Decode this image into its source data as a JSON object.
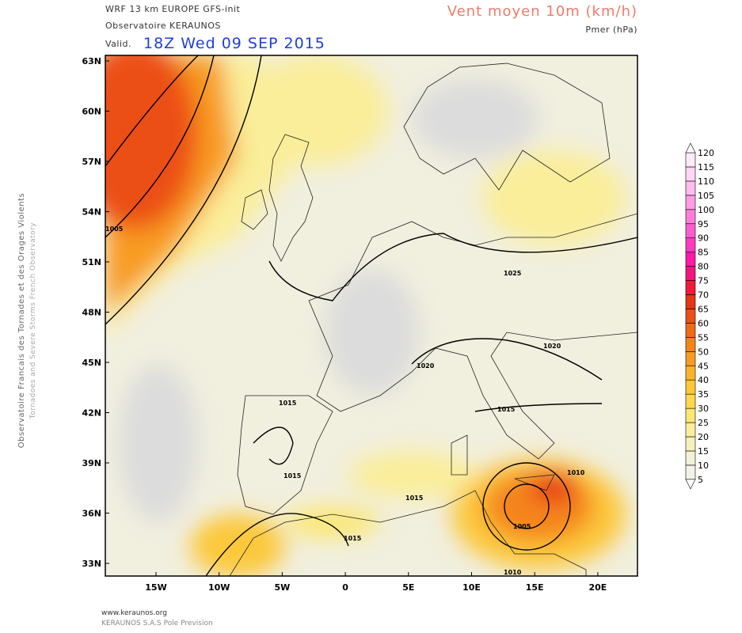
{
  "header": {
    "model": "WRF 13 km EUROPE   GFS-init",
    "org": "Observatoire KERAUNOS",
    "valid_prefix": "Valid.",
    "valid": "18Z Wed 09 SEP 2015",
    "field": "Vent moyen 10m (km/h)",
    "overlay": "Pmer (hPa)"
  },
  "map": {
    "lat_labels": [
      "63N",
      "60N",
      "57N",
      "54N",
      "51N",
      "48N",
      "45N",
      "42N",
      "39N",
      "36N",
      "33N"
    ],
    "lon_labels": [
      "15W",
      "10W",
      "5W",
      "0",
      "5E",
      "10E",
      "15E",
      "20E"
    ],
    "isobar_labels": [
      "1005",
      "1025",
      "1020",
      "1020",
      "1015",
      "1015",
      "1015",
      "1015",
      "1015",
      "1010",
      "1005",
      "1010"
    ]
  },
  "colorbar": {
    "levels": [
      5,
      10,
      15,
      20,
      25,
      30,
      35,
      40,
      45,
      50,
      55,
      60,
      65,
      70,
      75,
      80,
      85,
      90,
      95,
      100,
      105,
      110,
      115,
      120
    ],
    "colors": [
      "#f2f2e6",
      "#f3f1d6",
      "#f6f0bd",
      "#faee9a",
      "#fce774",
      "#fdd84d",
      "#fcc83a",
      "#fbb22c",
      "#f89b21",
      "#f5841b",
      "#f16a17",
      "#ec5016",
      "#e63516",
      "#f21a3a",
      "#f5157a",
      "#ff1aa8",
      "#ff3cc0",
      "#ff5cd0",
      "#ff7cdc",
      "#ff9ce6",
      "#ffbcee",
      "#ffd6f6",
      "#ffeafb"
    ]
  },
  "side_text": [
    "Observatoire Francais des Tornades et des Orages Violents",
    "Tornadoes and Severe Storms French Observatory"
  ],
  "footer": [
    "www.keraunos.org",
    "KERAUNOS S.A.S Pole Prevision"
  ]
}
